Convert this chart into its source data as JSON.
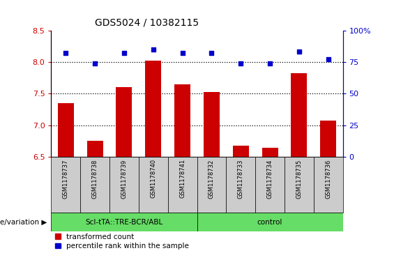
{
  "title": "GDS5024 / 10382115",
  "samples": [
    "GSM1178737",
    "GSM1178738",
    "GSM1178739",
    "GSM1178740",
    "GSM1178741",
    "GSM1178732",
    "GSM1178733",
    "GSM1178734",
    "GSM1178735",
    "GSM1178736"
  ],
  "bar_values": [
    7.35,
    6.75,
    7.6,
    8.02,
    7.65,
    7.52,
    6.68,
    6.64,
    7.82,
    7.07
  ],
  "scatter_values": [
    82,
    74,
    82,
    85,
    82,
    82,
    74,
    74,
    83,
    77
  ],
  "bar_color": "#cc0000",
  "scatter_color": "#0000cc",
  "ylim_left": [
    6.5,
    8.5
  ],
  "ylim_right": [
    0,
    100
  ],
  "yticks_left": [
    6.5,
    7.0,
    7.5,
    8.0,
    8.5
  ],
  "yticks_right": [
    0,
    25,
    50,
    75,
    100
  ],
  "hlines": [
    7.0,
    7.5,
    8.0
  ],
  "groups": [
    {
      "label": "Scl-tTA::TRE-BCR/ABL",
      "start": 0,
      "end": 5,
      "color": "#66dd66"
    },
    {
      "label": "control",
      "start": 5,
      "end": 10,
      "color": "#66dd66"
    }
  ],
  "genotype_label": "genotype/variation",
  "legend_bar_label": "transformed count",
  "legend_scatter_label": "percentile rank within the sample",
  "bar_width": 0.55,
  "baseline": 6.5,
  "sample_box_color": "#cccccc",
  "scatter_marker_size": 25
}
